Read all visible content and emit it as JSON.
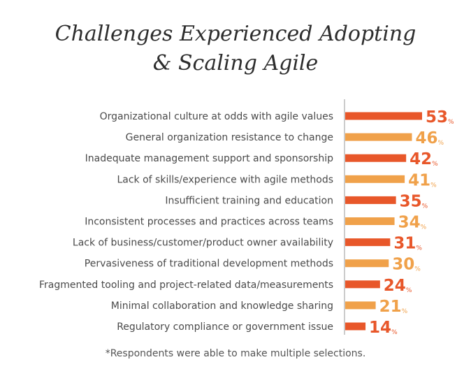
{
  "chart_data": {
    "type": "bar",
    "orientation": "horizontal",
    "title_lines": [
      "Challenges Experienced Adopting",
      "& Scaling Agile"
    ],
    "categories": [
      "Organizational culture at odds with agile values",
      "General organization resistance to change",
      "Inadequate management support and sponsorship",
      "Lack of skills/experience with agile methods",
      "Insufficient training and education",
      "Inconsistent processes and practices across teams",
      "Lack of business/customer/product owner availability",
      "Pervasiveness of traditional development methods",
      "Fragmented tooling and project-related data/measurements",
      "Minimal collaboration and knowledge sharing",
      "Regulatory compliance or government issue"
    ],
    "values": [
      53,
      46,
      42,
      41,
      35,
      34,
      31,
      30,
      24,
      21,
      14
    ],
    "unit": "%",
    "colors": [
      "#e8572a",
      "#f0a14a"
    ],
    "footnote": "*Respondents were able to make multiple selections."
  }
}
